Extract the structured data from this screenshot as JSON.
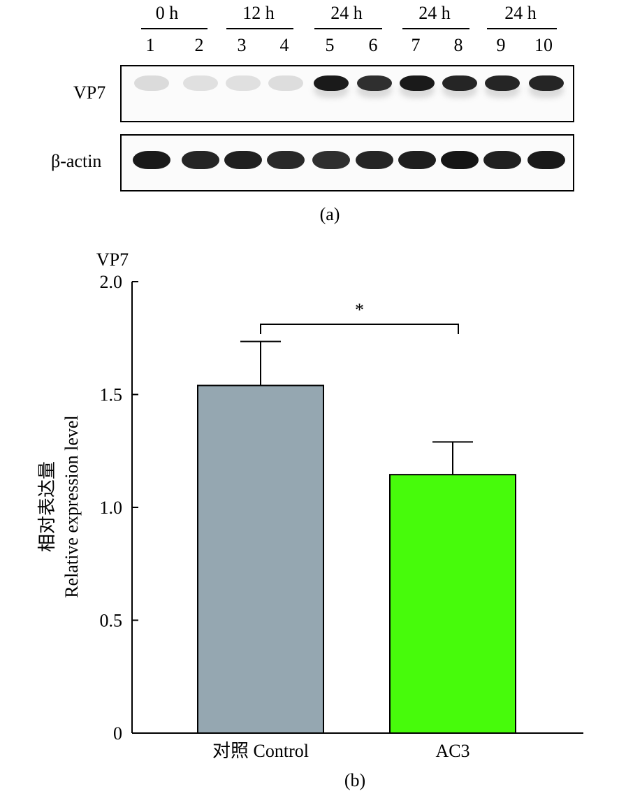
{
  "panel_a": {
    "groups": [
      {
        "label": "0 h"
      },
      {
        "label": "12 h"
      },
      {
        "label": "24 h"
      },
      {
        "label": "24 h"
      },
      {
        "label": "24 h"
      }
    ],
    "lanes": [
      "1",
      "2",
      "3",
      "4",
      "5",
      "6",
      "7",
      "8",
      "9",
      "10"
    ],
    "rows": [
      {
        "label": "VP7",
        "band_intensity": [
          0.05,
          0.03,
          0.03,
          0.04,
          0.95,
          0.85,
          0.95,
          0.9,
          0.9,
          0.9
        ]
      },
      {
        "label": "β-actin",
        "band_intensity": [
          0.95,
          0.9,
          0.92,
          0.88,
          0.85,
          0.9,
          0.93,
          0.97,
          0.92,
          0.95
        ]
      }
    ],
    "caption": "(a)"
  },
  "panel_b": {
    "caption": "(b)",
    "chart_data": {
      "type": "bar",
      "title_label": "VP7",
      "categories": [
        "对照 Control",
        "AC3"
      ],
      "values": [
        1.54,
        1.145
      ],
      "errors": [
        0.195,
        0.145
      ],
      "colors": [
        "#95a7b1",
        "#47fb0b"
      ],
      "ylabel_cn": "相对表达量",
      "ylabel_en": "Relative expression level",
      "ylim": [
        0,
        2.0
      ],
      "yticks": [
        "0",
        "0.5",
        "1.0",
        "1.5",
        "2.0"
      ],
      "ytick_values": [
        0,
        0.5,
        1.0,
        1.5,
        2.0
      ],
      "significance": "*",
      "grid": false
    }
  }
}
